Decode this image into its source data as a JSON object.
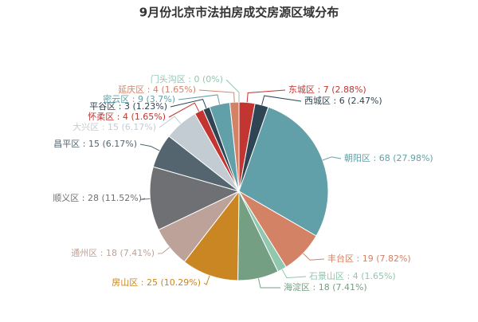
{
  "chart_data": {
    "type": "pie",
    "title": "9月份北京市法拍房成交房源区域分布",
    "categories": [
      "东城区",
      "西城区",
      "朝阳区",
      "丰台区",
      "石景山区",
      "海淀区",
      "房山区",
      "通州区",
      "顺义区",
      "昌平区",
      "大兴区",
      "怀柔区",
      "平谷区",
      "密云区",
      "延庆区",
      "门头沟区"
    ],
    "values": [
      7,
      6,
      68,
      19,
      4,
      18,
      25,
      18,
      28,
      15,
      15,
      4,
      3,
      9,
      4,
      0
    ],
    "value_labels": [
      "东城区 : 7 (2.88%)",
      "西城区 : 6 (2.47%)",
      "朝阳区 : 68 (27.98%)",
      "丰台区 : 19 (7.82%)",
      "石景山区 : 4 (1.65%)",
      "海淀区 : 18 (7.41%)",
      "房山区 : 25 (10.29%)",
      "通州区 : 18 (7.41%)",
      "顺义区 : 28 (11.52%)",
      "昌平区 : 15 (6.17%)",
      "大兴区 : 15 (6.17%)",
      "怀柔区 : 4 (1.65%)",
      "平谷区 : 3 (1.23%)",
      "密云区 : 9 (3.7%)",
      "延庆区 : 4 (1.65%)",
      "门头沟区 : 0 (0%)"
    ],
    "colors": [
      "#c23531",
      "#2f4554",
      "#61a0a8",
      "#d48265",
      "#91c7ae",
      "#749f83",
      "#ca8622",
      "#bda29a",
      "#6e7074",
      "#546570",
      "#c4ccd3",
      "#c23531",
      "#2f4554",
      "#61a0a8",
      "#d48265",
      "#91c7ae"
    ]
  }
}
